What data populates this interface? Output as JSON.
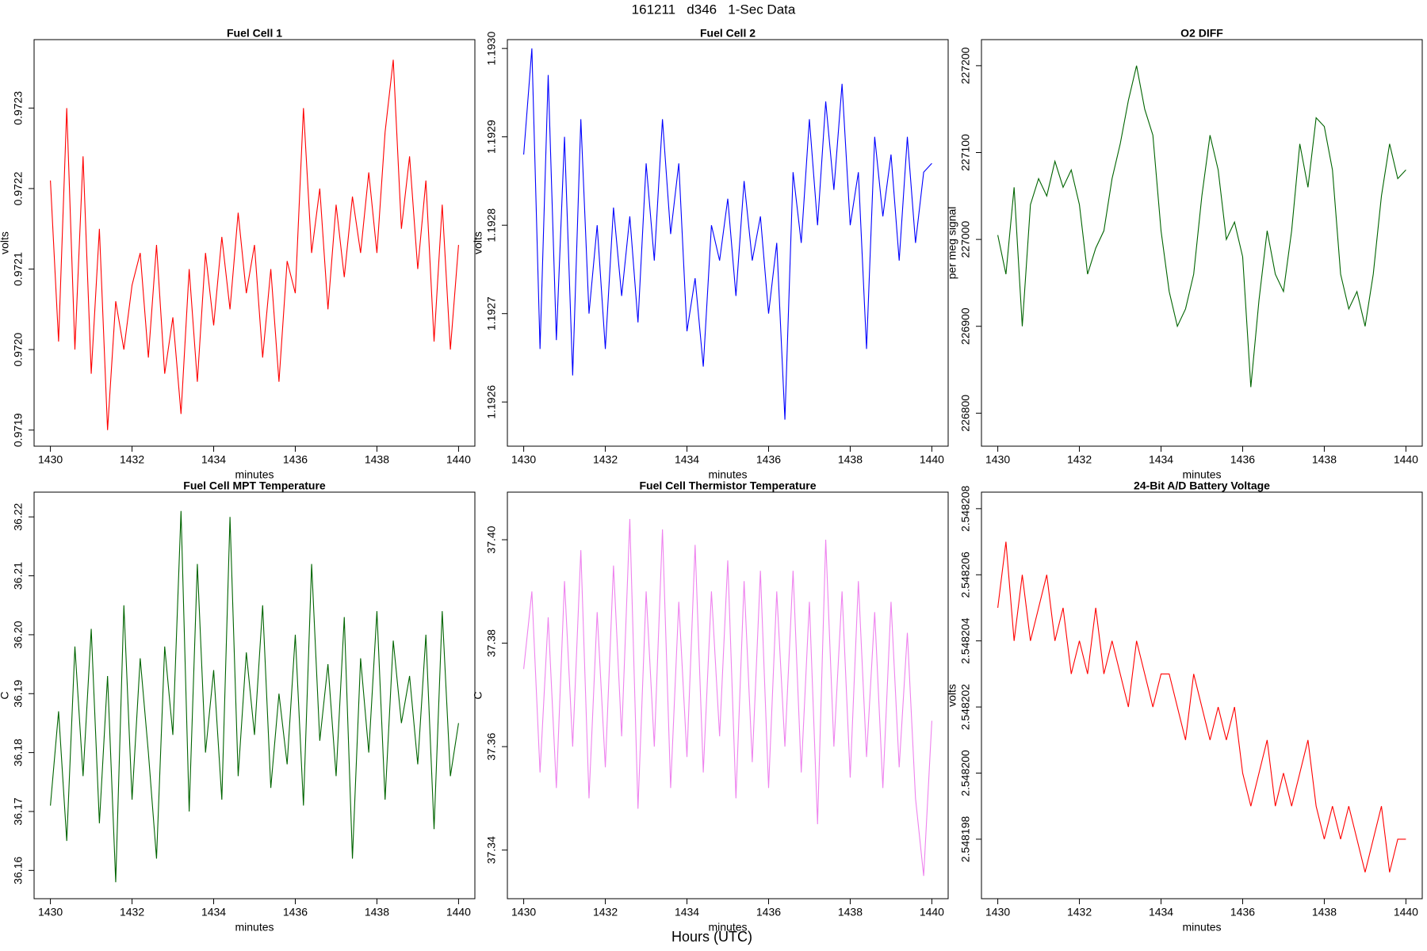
{
  "title": "161211   d346   1-Sec Data",
  "xlabel": "Hours (UTC)",
  "chart_data": [
    {
      "type": "line",
      "title": "Fuel Cell 1",
      "xlabel": "minutes",
      "ylabel": "volts",
      "xlim": [
        1429.6,
        1440.4
      ],
      "xticks": [
        1430,
        1432,
        1434,
        1436,
        1438,
        1440
      ],
      "ylim": [
        0.97188,
        0.972385
      ],
      "yticks": [
        0.9719,
        {
          "value": 0.972,
          "label": "0.9720"
        },
        0.9721,
        0.9722,
        0.9723
      ],
      "x": [
        1430,
        1430.2,
        1430.4,
        1430.6,
        1430.8,
        1431,
        1431.2,
        1431.4,
        1431.6,
        1431.8,
        1432,
        1432.2,
        1432.4,
        1432.6,
        1432.8,
        1433,
        1433.2,
        1433.4,
        1433.6,
        1433.8,
        1434,
        1434.2,
        1434.4,
        1434.6,
        1434.8,
        1435,
        1435.2,
        1435.4,
        1435.6,
        1435.8,
        1436,
        1436.2,
        1436.4,
        1436.6,
        1436.8,
        1437,
        1437.2,
        1437.4,
        1437.6,
        1437.8,
        1438,
        1438.2,
        1438.4,
        1438.6,
        1438.8,
        1439,
        1439.2,
        1439.4,
        1439.6,
        1439.8,
        1440
      ],
      "color": "#ff0000",
      "values": [
        0.97221,
        0.97201,
        0.9723,
        0.972,
        0.97224,
        0.97197,
        0.97215,
        0.9719,
        0.97206,
        0.972,
        0.97208,
        0.97212,
        0.97199,
        0.97213,
        0.97197,
        0.97204,
        0.97192,
        0.9721,
        0.97196,
        0.97212,
        0.97203,
        0.97214,
        0.97205,
        0.97217,
        0.97207,
        0.97213,
        0.97199,
        0.9721,
        0.97196,
        0.97211,
        0.97207,
        0.9723,
        0.97212,
        0.9722,
        0.97205,
        0.97218,
        0.97209,
        0.97219,
        0.97212,
        0.97222,
        0.97212,
        0.97227,
        0.97236,
        0.97215,
        0.97224,
        0.9721,
        0.97221,
        0.97201,
        0.97218,
        0.972,
        0.97213
      ]
    },
    {
      "type": "line",
      "title": "Fuel Cell 2",
      "xlabel": "minutes",
      "ylabel": "volts",
      "xlim": [
        1429.6,
        1440.4
      ],
      "xticks": [
        1430,
        1432,
        1434,
        1436,
        1438,
        1440
      ],
      "ylim": [
        1.19255,
        1.19301
      ],
      "yticks": [
        1.1926,
        1.1927,
        1.1928,
        1.1929,
        {
          "value": 1.193,
          "label": "1.1930"
        }
      ],
      "x": [
        1430,
        1430.2,
        1430.4,
        1430.6,
        1430.8,
        1431,
        1431.2,
        1431.4,
        1431.6,
        1431.8,
        1432,
        1432.2,
        1432.4,
        1432.6,
        1432.8,
        1433,
        1433.2,
        1433.4,
        1433.6,
        1433.8,
        1434,
        1434.2,
        1434.4,
        1434.6,
        1434.8,
        1435,
        1435.2,
        1435.4,
        1435.6,
        1435.8,
        1436,
        1436.2,
        1436.4,
        1436.6,
        1436.8,
        1437,
        1437.2,
        1437.4,
        1437.6,
        1437.8,
        1438,
        1438.2,
        1438.4,
        1438.6,
        1438.8,
        1439,
        1439.2,
        1439.4,
        1439.6,
        1439.8,
        1440
      ],
      "color": "#0000ff",
      "values": [
        1.19288,
        1.193,
        1.19266,
        1.19297,
        1.19267,
        1.1929,
        1.19263,
        1.19292,
        1.1927,
        1.1928,
        1.19266,
        1.19282,
        1.19272,
        1.19281,
        1.19269,
        1.19287,
        1.19276,
        1.19292,
        1.19279,
        1.19287,
        1.19268,
        1.19274,
        1.19264,
        1.1928,
        1.19276,
        1.19283,
        1.19272,
        1.19285,
        1.19276,
        1.19281,
        1.1927,
        1.19278,
        1.19258,
        1.19286,
        1.19278,
        1.19292,
        1.1928,
        1.19294,
        1.19284,
        1.19296,
        1.1928,
        1.19286,
        1.19266,
        1.1929,
        1.19281,
        1.19288,
        1.19276,
        1.1929,
        1.19278,
        1.19286,
        1.19287
      ]
    },
    {
      "type": "line",
      "title": "O2 DIFF",
      "xlabel": "minutes",
      "ylabel": "per meg signal",
      "xlim": [
        1429.6,
        1440.4
      ],
      "xticks": [
        1430,
        1432,
        1434,
        1436,
        1438,
        1440
      ],
      "ylim": [
        226762,
        227230
      ],
      "yticks": [
        226800,
        226900,
        227000,
        227100,
        227200
      ],
      "x": [
        1430,
        1430.2,
        1430.4,
        1430.6,
        1430.8,
        1431,
        1431.2,
        1431.4,
        1431.6,
        1431.8,
        1432,
        1432.2,
        1432.4,
        1432.6,
        1432.8,
        1433,
        1433.2,
        1433.4,
        1433.6,
        1433.8,
        1434,
        1434.2,
        1434.4,
        1434.6,
        1434.8,
        1435,
        1435.2,
        1435.4,
        1435.6,
        1435.8,
        1436,
        1436.2,
        1436.4,
        1436.6,
        1436.8,
        1437,
        1437.2,
        1437.4,
        1437.6,
        1437.8,
        1438,
        1438.2,
        1438.4,
        1438.6,
        1438.8,
        1439,
        1439.2,
        1439.4,
        1439.6,
        1439.8,
        1440
      ],
      "color": "#006400",
      "values": [
        227005,
        226960,
        227060,
        226900,
        227040,
        227070,
        227050,
        227090,
        227060,
        227080,
        227040,
        226960,
        226990,
        227010,
        227070,
        227110,
        227160,
        227200,
        227150,
        227120,
        227010,
        226940,
        226900,
        226920,
        226960,
        227050,
        227120,
        227080,
        227000,
        227020,
        226980,
        226830,
        226930,
        227010,
        226960,
        226940,
        227010,
        227110,
        227060,
        227140,
        227130,
        227080,
        226960,
        226920,
        226940,
        226900,
        226960,
        227050,
        227110,
        227070,
        227080
      ]
    },
    {
      "type": "line",
      "title": "Fuel Cell MPT Temperature",
      "xlabel": "minutes",
      "ylabel": "C",
      "xlim": [
        1429.6,
        1440.4
      ],
      "xticks": [
        1430,
        1432,
        1434,
        1436,
        1438,
        1440
      ],
      "ylim": [
        36.1552,
        36.2242
      ],
      "yticks": [
        36.16,
        36.17,
        36.18,
        36.19,
        {
          "value": 36.2,
          "label": "36.20"
        },
        36.21,
        36.22
      ],
      "x": [
        1430,
        1430.2,
        1430.4,
        1430.6,
        1430.8,
        1431,
        1431.2,
        1431.4,
        1431.6,
        1431.8,
        1432,
        1432.2,
        1432.4,
        1432.6,
        1432.8,
        1433,
        1433.2,
        1433.4,
        1433.6,
        1433.8,
        1434,
        1434.2,
        1434.4,
        1434.6,
        1434.8,
        1435,
        1435.2,
        1435.4,
        1435.6,
        1435.8,
        1436,
        1436.2,
        1436.4,
        1436.6,
        1436.8,
        1437,
        1437.2,
        1437.4,
        1437.6,
        1437.8,
        1438,
        1438.2,
        1438.4,
        1438.6,
        1438.8,
        1439,
        1439.2,
        1439.4,
        1439.6,
        1439.8,
        1440
      ],
      "color": "#006400",
      "values": [
        36.171,
        36.187,
        36.165,
        36.198,
        36.176,
        36.201,
        36.168,
        36.193,
        36.158,
        36.205,
        36.172,
        36.196,
        36.18,
        36.162,
        36.198,
        36.183,
        36.221,
        36.17,
        36.212,
        36.18,
        36.194,
        36.172,
        36.22,
        36.176,
        36.197,
        36.183,
        36.205,
        36.174,
        36.19,
        36.178,
        36.2,
        36.171,
        36.212,
        36.182,
        36.195,
        36.176,
        36.203,
        36.162,
        36.196,
        36.18,
        36.204,
        36.172,
        36.199,
        36.185,
        36.193,
        36.178,
        36.2,
        36.167,
        36.204,
        36.176,
        36.185
      ]
    },
    {
      "type": "line",
      "title": "Fuel Cell Thermistor Temperature",
      "xlabel": "minutes",
      "ylabel": "C",
      "xlim": [
        1429.6,
        1440.4
      ],
      "xticks": [
        1430,
        1432,
        1434,
        1436,
        1438,
        1440
      ],
      "ylim": [
        37.3306,
        37.4092
      ],
      "yticks": [
        37.34,
        37.36,
        37.38,
        {
          "value": 37.4,
          "label": "37.40"
        }
      ],
      "x": [
        1430,
        1430.2,
        1430.4,
        1430.6,
        1430.8,
        1431,
        1431.2,
        1431.4,
        1431.6,
        1431.8,
        1432,
        1432.2,
        1432.4,
        1432.6,
        1432.8,
        1433,
        1433.2,
        1433.4,
        1433.6,
        1433.8,
        1434,
        1434.2,
        1434.4,
        1434.6,
        1434.8,
        1435,
        1435.2,
        1435.4,
        1435.6,
        1435.8,
        1436,
        1436.2,
        1436.4,
        1436.6,
        1436.8,
        1437,
        1437.2,
        1437.4,
        1437.6,
        1437.8,
        1438,
        1438.2,
        1438.4,
        1438.6,
        1438.8,
        1439,
        1439.2,
        1439.4,
        1439.6,
        1439.8,
        1440
      ],
      "color": "#ee82ee",
      "values": [
        37.375,
        37.39,
        37.355,
        37.385,
        37.352,
        37.392,
        37.36,
        37.398,
        37.35,
        37.386,
        37.356,
        37.395,
        37.362,
        37.404,
        37.348,
        37.39,
        37.36,
        37.402,
        37.352,
        37.388,
        37.358,
        37.399,
        37.355,
        37.39,
        37.362,
        37.396,
        37.35,
        37.392,
        37.357,
        37.394,
        37.352,
        37.39,
        37.36,
        37.394,
        37.355,
        37.388,
        37.345,
        37.4,
        37.36,
        37.39,
        37.354,
        37.392,
        37.358,
        37.386,
        37.352,
        37.388,
        37.356,
        37.382,
        37.35,
        37.335,
        37.365
      ]
    },
    {
      "type": "line",
      "title": "24-Bit A/D Battery Voltage",
      "xlabel": "minutes",
      "ylabel": "volts",
      "xlim": [
        1429.6,
        1440.4
      ],
      "xticks": [
        1430,
        1432,
        1434,
        1436,
        1438,
        1440
      ],
      "ylim": [
        2.5481962,
        2.5482085
      ],
      "yticks": [
        2.548198,
        {
          "value": 2.5482,
          "label": "2.548200"
        },
        2.548202,
        2.548204,
        2.548206,
        2.548208
      ],
      "x": [
        1430,
        1430.2,
        1430.4,
        1430.6,
        1430.8,
        1431,
        1431.2,
        1431.4,
        1431.6,
        1431.8,
        1432,
        1432.2,
        1432.4,
        1432.6,
        1432.8,
        1433,
        1433.2,
        1433.4,
        1433.6,
        1433.8,
        1434,
        1434.2,
        1434.4,
        1434.6,
        1434.8,
        1435,
        1435.2,
        1435.4,
        1435.6,
        1435.8,
        1436,
        1436.2,
        1436.4,
        1436.6,
        1436.8,
        1437,
        1437.2,
        1437.4,
        1437.6,
        1437.8,
        1438,
        1438.2,
        1438.4,
        1438.6,
        1438.8,
        1439,
        1439.2,
        1439.4,
        1439.6,
        1439.8,
        1440
      ],
      "color": "#ff0000",
      "values": [
        2.548205,
        2.548207,
        2.548204,
        2.548206,
        2.548204,
        2.548205,
        2.548206,
        2.548204,
        2.548205,
        2.548203,
        2.548204,
        2.548203,
        2.548205,
        2.548203,
        2.548204,
        2.548203,
        2.548202,
        2.548204,
        2.548203,
        2.548202,
        2.548203,
        2.548203,
        2.548202,
        2.548201,
        2.548203,
        2.548202,
        2.548201,
        2.548202,
        2.548201,
        2.548202,
        2.5482,
        2.548199,
        2.5482,
        2.548201,
        2.548199,
        2.5482,
        2.548199,
        2.5482,
        2.548201,
        2.548199,
        2.548198,
        2.548199,
        2.548198,
        2.548199,
        2.548198,
        2.548197,
        2.548198,
        2.548199,
        2.548197,
        2.548198,
        2.548198
      ]
    }
  ]
}
